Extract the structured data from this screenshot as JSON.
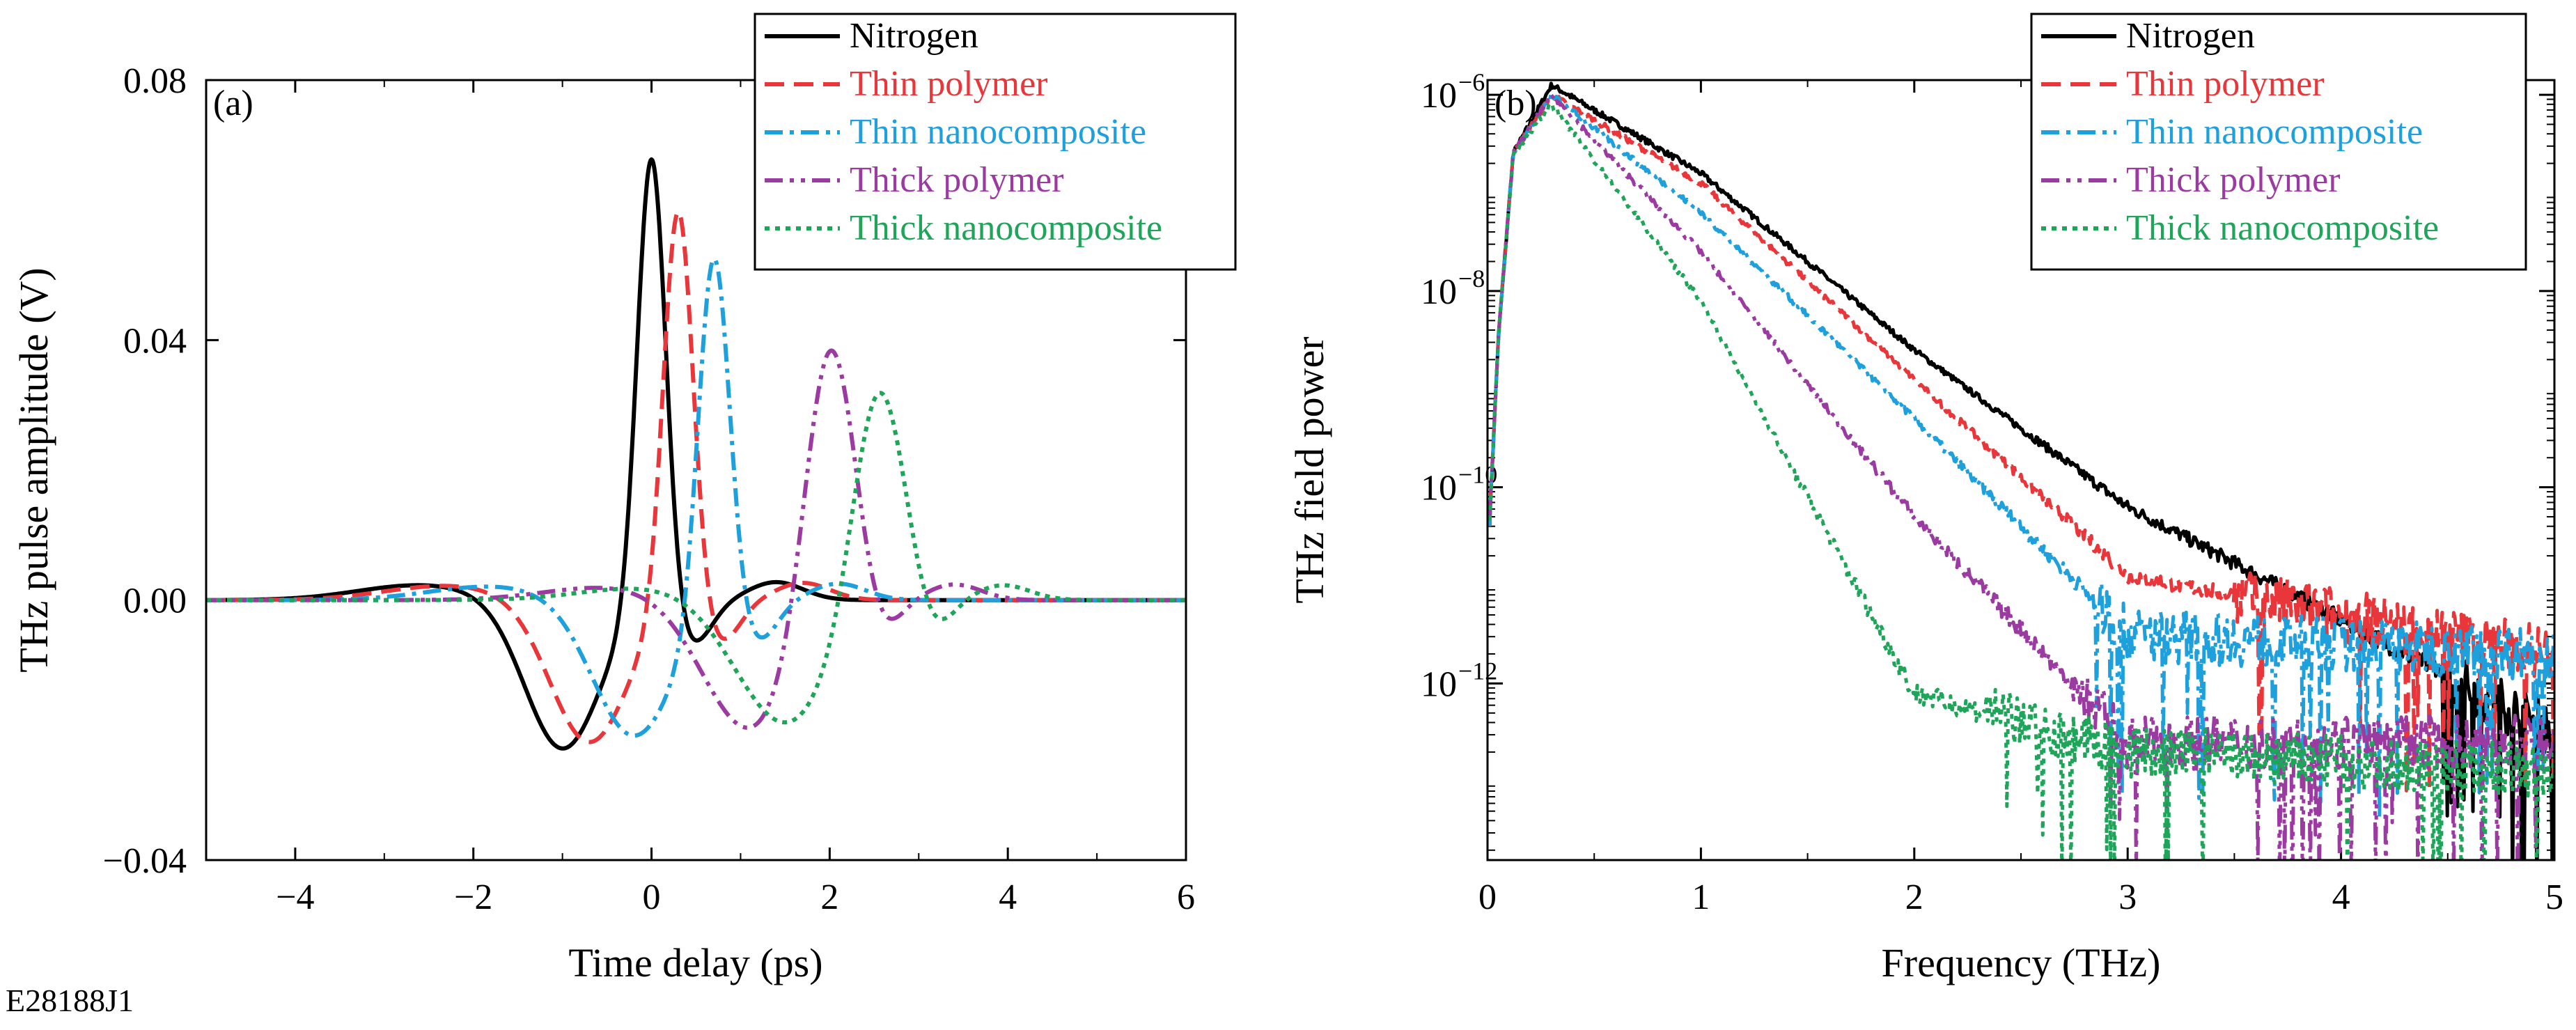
{
  "figure_id": "E28188J1",
  "colors": {
    "nitrogen": "#000000",
    "thin_polymer": "#e8363a",
    "thin_nanocomposite": "#1ea0dc",
    "thick_polymer": "#9b3aa0",
    "thick_nanocomposite": "#1fa55a"
  },
  "legend_labels": [
    "Nitrogen",
    "Thin polymer",
    "Thin nanocomposite",
    "Thick polymer",
    "Thick nanocomposite"
  ],
  "chart_data": [
    {
      "type": "line",
      "panel_label": "(a)",
      "xlabel": "Time delay (ps)",
      "ylabel": "THz pulse amplitude (V)",
      "xlim": [
        -5,
        6
      ],
      "ylim": [
        -0.04,
        0.08
      ],
      "xticks": [
        -4,
        -2,
        0,
        2,
        4,
        6
      ],
      "xtick_labels": [
        "−4",
        "−2",
        "0",
        "2",
        "4",
        "6"
      ],
      "yticks": [
        -0.04,
        0,
        0.04,
        0.08
      ],
      "ytick_labels": [
        "−0.04",
        "0.00",
        "0.04",
        "0.08"
      ],
      "series": [
        {
          "name": "Nitrogen",
          "pulse_center_ps": 0.0,
          "peak_V": 0.07,
          "trough_V": -0.023,
          "trough_ps": -1.0
        },
        {
          "name": "Thin polymer",
          "pulse_center_ps": 0.3,
          "peak_V": 0.062,
          "trough_V": -0.022,
          "trough_ps": -0.7
        },
        {
          "name": "Thin nanocomposite",
          "pulse_center_ps": 0.7,
          "peak_V": 0.056,
          "trough_V": -0.021,
          "trough_ps": -0.2
        },
        {
          "name": "Thick polymer",
          "pulse_center_ps": 2.0,
          "peak_V": 0.043,
          "trough_V": -0.02,
          "trough_ps": 1.1
        },
        {
          "name": "Thick nanocomposite",
          "pulse_center_ps": 2.55,
          "peak_V": 0.035,
          "trough_V": -0.019,
          "trough_ps": 1.5
        }
      ],
      "legend": "top-right"
    },
    {
      "type": "line",
      "panel_label": "(b)",
      "xlabel": "Frequency (THz)",
      "ylabel": "THz field power",
      "xlim": [
        0,
        5
      ],
      "ylim_log10": [
        -13.8,
        -5.85
      ],
      "yscale": "log",
      "xticks": [
        0,
        1,
        2,
        3,
        4,
        5
      ],
      "xtick_labels": [
        "0",
        "1",
        "2",
        "3",
        "4",
        "5"
      ],
      "yticks_log10": [
        -12,
        -10,
        -8,
        -6
      ],
      "ytick_labels": [
        [
          "10",
          "−12"
        ],
        [
          "10",
          "−10"
        ],
        [
          "10",
          "−8"
        ],
        [
          "10",
          "−6"
        ]
      ],
      "series": [
        {
          "name": "Nitrogen",
          "peak_THz": 0.3,
          "peak_log10": -5.9,
          "log10_at_1THz": -6.8,
          "log10_at_2THz": -8.6,
          "log10_at_3THz": -10.2,
          "noise_floor_log10": -12.5
        },
        {
          "name": "Thin polymer",
          "peak_THz": 0.3,
          "peak_log10": -6.0,
          "log10_at_1THz": -6.9,
          "log10_at_2THz": -8.9,
          "log10_at_3THz": -10.9,
          "noise_floor_log10": -11.7
        },
        {
          "name": "Thin nanocomposite",
          "peak_THz": 0.3,
          "peak_log10": -6.0,
          "log10_at_1THz": -7.2,
          "log10_at_2THz": -9.3,
          "log10_at_3THz": -11.5,
          "noise_floor_log10": -11.7
        },
        {
          "name": "Thick polymer",
          "peak_THz": 0.3,
          "peak_log10": -6.0,
          "log10_at_1THz": -7.6,
          "log10_at_2THz": -10.3,
          "log10_at_3THz": -12.6,
          "noise_floor_log10": -12.6
        },
        {
          "name": "Thick nanocomposite",
          "peak_THz": 0.3,
          "peak_log10": -6.1,
          "log10_at_1THz": -8.1,
          "log10_at_2THz": -12.1,
          "log10_at_3THz": -12.7,
          "noise_floor_log10": -12.9
        }
      ],
      "legend": "top-right"
    }
  ]
}
